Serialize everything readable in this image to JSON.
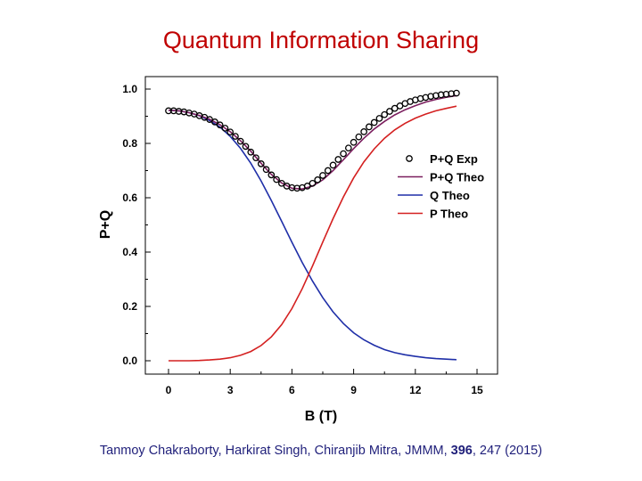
{
  "slide": {
    "title": "Quantum Information Sharing"
  },
  "citation": {
    "authors_journal": "Tanmoy Chakraborty, Harkirat Singh, Chiranjib Mitra, JMMM,",
    "volume": "396",
    "pages_year": ", 247 (2015)"
  },
  "chart_data": {
    "type": "line",
    "title": "",
    "xlabel": "B (T)",
    "ylabel": "P+Q",
    "xlim": [
      -1,
      16
    ],
    "ylim": [
      -0.05,
      1.05
    ],
    "xticks": [
      0,
      3,
      6,
      9,
      12,
      15
    ],
    "yticks": [
      0.0,
      0.2,
      0.4,
      0.6,
      0.8,
      1.0
    ],
    "xtick_labels": [
      "0",
      "3",
      "6",
      "9",
      "12",
      "15"
    ],
    "ytick_labels": [
      "0.0",
      "0.2",
      "0.4",
      "0.6",
      "0.8",
      "1.0"
    ],
    "grid": false,
    "legend_position": "right",
    "series": [
      {
        "name": "P+Q Exp",
        "kind": "scatter",
        "color": "#000000",
        "x": [
          0.0,
          0.25,
          0.5,
          0.75,
          1.0,
          1.25,
          1.5,
          1.75,
          2.0,
          2.25,
          2.5,
          2.75,
          3.0,
          3.25,
          3.5,
          3.75,
          4.0,
          4.25,
          4.5,
          4.75,
          5.0,
          5.25,
          5.5,
          5.75,
          6.0,
          6.25,
          6.5,
          6.75,
          7.0,
          7.25,
          7.5,
          7.75,
          8.0,
          8.25,
          8.5,
          8.75,
          9.0,
          9.25,
          9.5,
          9.75,
          10.0,
          10.25,
          10.5,
          10.75,
          11.0,
          11.25,
          11.5,
          11.75,
          12.0,
          12.25,
          12.5,
          12.75,
          13.0,
          13.25,
          13.5,
          13.75,
          14.0
        ],
        "y": [
          0.92,
          0.92,
          0.918,
          0.916,
          0.912,
          0.908,
          0.902,
          0.896,
          0.888,
          0.879,
          0.868,
          0.856,
          0.842,
          0.826,
          0.808,
          0.789,
          0.768,
          0.747,
          0.725,
          0.704,
          0.684,
          0.667,
          0.653,
          0.643,
          0.637,
          0.635,
          0.637,
          0.643,
          0.653,
          0.666,
          0.682,
          0.7,
          0.72,
          0.741,
          0.762,
          0.783,
          0.804,
          0.824,
          0.843,
          0.861,
          0.877,
          0.892,
          0.906,
          0.918,
          0.929,
          0.938,
          0.947,
          0.954,
          0.96,
          0.965,
          0.969,
          0.973,
          0.976,
          0.979,
          0.981,
          0.983,
          0.985
        ]
      },
      {
        "name": "P+Q Theo",
        "kind": "line",
        "color": "#7b1e5e",
        "x": [
          0,
          0.5,
          1,
          1.5,
          2,
          2.5,
          3,
          3.5,
          4,
          4.5,
          5,
          5.5,
          6,
          6.5,
          7,
          7.5,
          8,
          8.5,
          9,
          9.5,
          10,
          10.5,
          11,
          11.5,
          12,
          12.5,
          13,
          13.5,
          14
        ],
        "y": [
          0.922,
          0.92,
          0.913,
          0.903,
          0.889,
          0.869,
          0.843,
          0.81,
          0.771,
          0.727,
          0.686,
          0.654,
          0.635,
          0.632,
          0.643,
          0.666,
          0.7,
          0.74,
          0.781,
          0.819,
          0.853,
          0.881,
          0.905,
          0.924,
          0.939,
          0.952,
          0.962,
          0.97,
          0.976
        ]
      },
      {
        "name": "Q Theo",
        "kind": "line",
        "color": "#1f2fa8",
        "x": [
          0,
          0.5,
          1,
          1.5,
          2,
          2.5,
          3,
          3.5,
          4,
          4.5,
          5,
          5.5,
          6,
          6.5,
          7,
          7.5,
          8,
          8.5,
          9,
          9.5,
          10,
          10.5,
          11,
          11.5,
          12,
          12.5,
          13,
          13.5,
          14
        ],
        "y": [
          0.922,
          0.92,
          0.913,
          0.902,
          0.884,
          0.86,
          0.826,
          0.782,
          0.727,
          0.662,
          0.59,
          0.513,
          0.436,
          0.362,
          0.293,
          0.232,
          0.18,
          0.137,
          0.103,
          0.077,
          0.057,
          0.041,
          0.03,
          0.022,
          0.016,
          0.011,
          0.008,
          0.006,
          0.004
        ]
      },
      {
        "name": "P Theo",
        "kind": "line",
        "color": "#d42020",
        "x": [
          0,
          0.5,
          1,
          1.5,
          2,
          2.5,
          3,
          3.5,
          4,
          4.5,
          5,
          5.5,
          6,
          6.5,
          7,
          7.5,
          8,
          8.5,
          9,
          9.5,
          10,
          10.5,
          11,
          11.5,
          12,
          12.5,
          13,
          13.5,
          14
        ],
        "y": [
          0.0,
          0.0,
          0.0,
          0.001,
          0.003,
          0.006,
          0.011,
          0.02,
          0.034,
          0.056,
          0.088,
          0.133,
          0.192,
          0.265,
          0.349,
          0.437,
          0.523,
          0.603,
          0.673,
          0.732,
          0.78,
          0.819,
          0.85,
          0.874,
          0.893,
          0.908,
          0.92,
          0.929,
          0.937
        ]
      }
    ]
  }
}
